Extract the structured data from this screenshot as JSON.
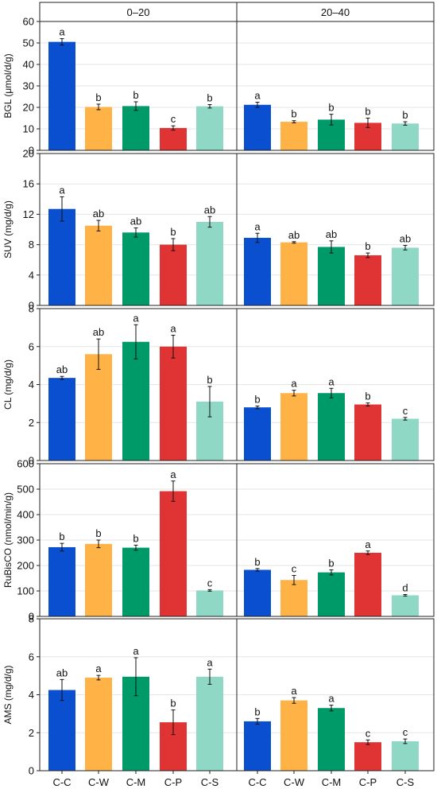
{
  "figure": {
    "facets": [
      "0–20",
      "20–40"
    ],
    "x_categories": [
      "C-C",
      "C-W",
      "C-M",
      "C-P",
      "C-S"
    ]
  },
  "colors": {
    "C-C": "#0a4fcf",
    "C-W": "#ffb347",
    "C-M": "#009a68",
    "C-P": "#e03333",
    "C-S": "#8fd8c6",
    "grid": "#e6e6e6",
    "axis": "#222222"
  },
  "chart_data": [
    {
      "type": "bar",
      "ylabel": "BGL (μmol/d/g)",
      "ylim": [
        0,
        60
      ],
      "yticks": [
        0,
        10,
        20,
        30,
        40,
        50,
        60
      ],
      "categories": [
        "C-C",
        "C-W",
        "C-M",
        "C-P",
        "C-S"
      ],
      "series": [
        {
          "group": "0–20",
          "values": [
            50.5,
            20.2,
            20.6,
            10.4,
            20.5
          ],
          "errors": [
            1.5,
            1.3,
            2.0,
            1.0,
            0.8
          ],
          "letters": [
            "a",
            "b",
            "b",
            "c",
            "b"
          ]
        },
        {
          "group": "20–40",
          "values": [
            21.2,
            13.3,
            14.3,
            12.8,
            12.5
          ],
          "errors": [
            1.2,
            0.5,
            2.5,
            2.2,
            0.8
          ],
          "letters": [
            "a",
            "b",
            "b",
            "b",
            "b"
          ]
        }
      ]
    },
    {
      "type": "bar",
      "ylabel": "SUV (mg/d/g)",
      "ylim": [
        0,
        20
      ],
      "yticks": [
        0,
        4,
        8,
        12,
        16,
        20
      ],
      "categories": [
        "C-C",
        "C-W",
        "C-M",
        "C-P",
        "C-S"
      ],
      "series": [
        {
          "group": "0–20",
          "values": [
            12.7,
            10.5,
            9.6,
            8.0,
            11.0
          ],
          "errors": [
            1.6,
            0.7,
            0.6,
            0.8,
            0.7
          ],
          "letters": [
            "a",
            "ab",
            "ab",
            "b",
            "ab"
          ]
        },
        {
          "group": "20–40",
          "values": [
            8.9,
            8.3,
            7.7,
            6.6,
            7.6
          ],
          "errors": [
            0.6,
            0.1,
            0.8,
            0.3,
            0.3
          ],
          "letters": [
            "a",
            "ab",
            "ab",
            "b",
            "ab"
          ]
        }
      ]
    },
    {
      "type": "bar",
      "ylabel": "CL (mg/d/g)",
      "ylim": [
        0,
        8
      ],
      "yticks": [
        0,
        2,
        4,
        6,
        8
      ],
      "categories": [
        "C-C",
        "C-W",
        "C-M",
        "C-P",
        "C-S"
      ],
      "series": [
        {
          "group": "0–20",
          "values": [
            4.35,
            5.6,
            6.25,
            6.0,
            3.1
          ],
          "errors": [
            0.08,
            0.8,
            0.9,
            0.6,
            0.8
          ],
          "letters": [
            "ab",
            "ab",
            "a",
            "a",
            "b"
          ]
        },
        {
          "group": "20–40",
          "values": [
            2.8,
            3.55,
            3.55,
            2.95,
            2.2
          ],
          "errors": [
            0.07,
            0.15,
            0.25,
            0.08,
            0.07
          ],
          "letters": [
            "b",
            "a",
            "a",
            "b",
            "c"
          ]
        }
      ]
    },
    {
      "type": "bar",
      "ylabel": "RuBisCO (nmol/min/g)",
      "ylim": [
        0,
        600
      ],
      "yticks": [
        0,
        100,
        200,
        300,
        400,
        500,
        600
      ],
      "categories": [
        "C-C",
        "C-W",
        "C-M",
        "C-P",
        "C-S"
      ],
      "series": [
        {
          "group": "0–20",
          "values": [
            272,
            285,
            270,
            492,
            102
          ],
          "errors": [
            15,
            15,
            10,
            40,
            3
          ],
          "letters": [
            "b",
            "b",
            "b",
            "a",
            "c"
          ]
        },
        {
          "group": "20–40",
          "values": [
            183,
            143,
            173,
            250,
            83
          ],
          "errors": [
            5,
            18,
            10,
            7,
            3
          ],
          "letters": [
            "b",
            "c",
            "b",
            "a",
            "d"
          ]
        }
      ]
    },
    {
      "type": "bar",
      "ylabel": "AMS (mg/d/g)",
      "ylim": [
        0,
        8
      ],
      "yticks": [
        0,
        2,
        4,
        6,
        8
      ],
      "categories": [
        "C-C",
        "C-W",
        "C-M",
        "C-P",
        "C-S"
      ],
      "series": [
        {
          "group": "0–20",
          "values": [
            4.25,
            4.9,
            4.95,
            2.55,
            4.95
          ],
          "errors": [
            0.55,
            0.12,
            1.0,
            0.65,
            0.4
          ],
          "letters": [
            "ab",
            "a",
            "a",
            "b",
            "a"
          ]
        },
        {
          "group": "20–40",
          "values": [
            2.6,
            3.7,
            3.3,
            1.5,
            1.55
          ],
          "errors": [
            0.15,
            0.15,
            0.15,
            0.12,
            0.12
          ],
          "letters": [
            "b",
            "a",
            "a",
            "c",
            "c"
          ]
        }
      ]
    }
  ]
}
